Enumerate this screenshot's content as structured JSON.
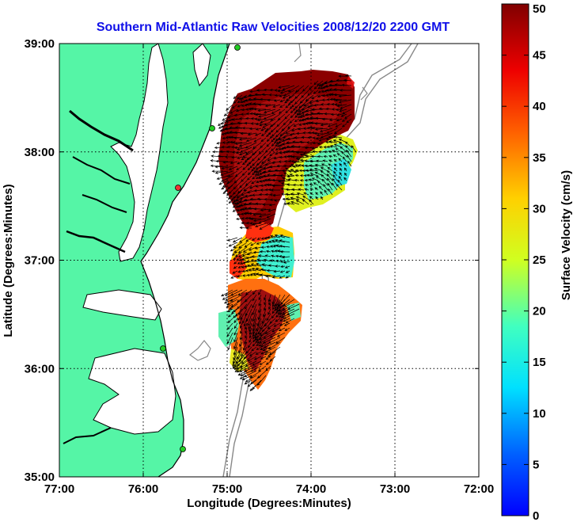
{
  "title": "Southern Mid-Atlantic Raw Velocities 2008/12/20 2200 GMT",
  "x_axis": {
    "label": "Longitude (Degrees:Minutes)",
    "ticks": [
      "77:00",
      "76:00",
      "75:00",
      "74:00",
      "73:00",
      "72:00"
    ]
  },
  "y_axis": {
    "label": "Latitude (Degrees:Minutes)",
    "ticks": [
      "39:00",
      "38:00",
      "37:00",
      "36:00",
      "35:00"
    ]
  },
  "colorbar": {
    "label": "Surface Velocity (cm/s)",
    "ticks": [
      "50",
      "45",
      "40",
      "35",
      "30",
      "25",
      "20",
      "15",
      "10",
      "5",
      "0"
    ],
    "min": 0,
    "max": 50,
    "colormap": "jet"
  },
  "map": {
    "lon_range": [
      -77,
      -72
    ],
    "lat_range": [
      35,
      39
    ],
    "grid": "dotted",
    "land_color": "#55f5a6",
    "bathymetry_color": "#888888",
    "station_color": "#22cc22"
  }
}
